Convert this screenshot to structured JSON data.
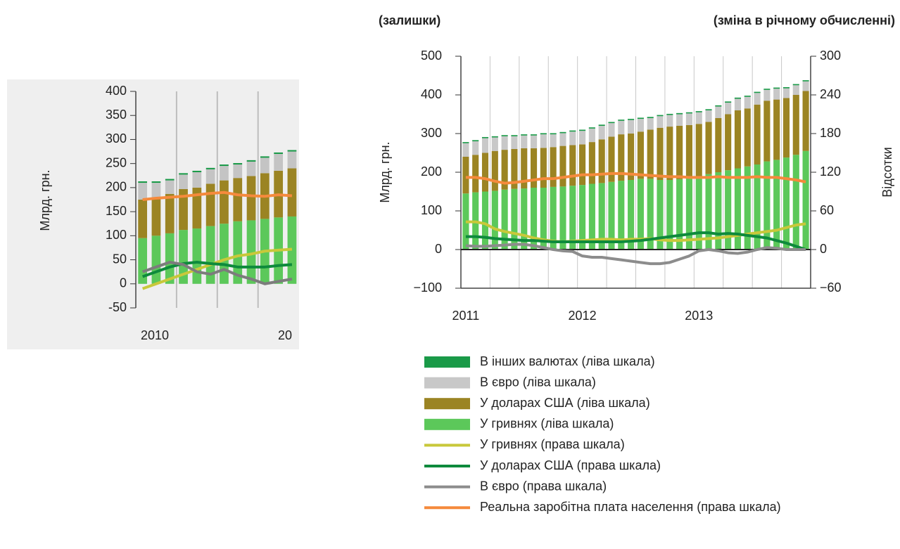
{
  "chart_data": [
    {
      "type": "bar",
      "ylabel": "Млрд. грн.",
      "categories": [
        null,
        null,
        null,
        null,
        null,
        null,
        null,
        null,
        null,
        null,
        null,
        null
      ],
      "x_labels": [
        "2010",
        "20"
      ],
      "ylim": [
        -50,
        400
      ],
      "yticks": [
        400,
        350,
        300,
        250,
        200,
        150,
        100,
        50,
        0,
        -50
      ],
      "series": [
        {
          "type": "bar",
          "color": "#1a9a48",
          "values": [
            3,
            3,
            3,
            3,
            3,
            3,
            3,
            3,
            3,
            3,
            3,
            3
          ]
        },
        {
          "type": "bar",
          "color": "#c4c4c4",
          "values": [
            35,
            30,
            28,
            30,
            32,
            30,
            30,
            28,
            30,
            32,
            35,
            35
          ]
        },
        {
          "type": "bar",
          "color": "#9b8423",
          "values": [
            80,
            80,
            82,
            85,
            85,
            88,
            90,
            90,
            92,
            95,
            97,
            100
          ]
        },
        {
          "type": "bar",
          "color": "#5cc85a",
          "values": [
            95,
            100,
            105,
            112,
            115,
            120,
            125,
            130,
            132,
            135,
            138,
            140
          ]
        },
        {
          "type": "line",
          "color": "#c8c83a",
          "values": [
            -10,
            0,
            10,
            20,
            30,
            40,
            50,
            58,
            62,
            68,
            70,
            72
          ]
        },
        {
          "type": "line",
          "color": "#0e8a3c",
          "values": [
            15,
            25,
            35,
            42,
            45,
            42,
            40,
            35,
            35,
            35,
            38,
            40
          ]
        },
        {
          "type": "line",
          "color": "#7c7c7c",
          "values": [
            25,
            35,
            45,
            40,
            25,
            20,
            30,
            18,
            10,
            0,
            5,
            10
          ]
        },
        {
          "type": "line",
          "color": "#f58a3c",
          "values": [
            175,
            178,
            180,
            182,
            185,
            188,
            190,
            185,
            183,
            182,
            185,
            183
          ]
        }
      ]
    },
    {
      "type": "bar",
      "title_left": "(залишки)",
      "title_right": "(зміна в річному обчисленні)",
      "ylabel": "Млрд. грн.",
      "y2label": "Відсотки",
      "categories": [
        null,
        null,
        null,
        null,
        null,
        null,
        null,
        null,
        null,
        null,
        null,
        null,
        null,
        null,
        null,
        null,
        null,
        null,
        null,
        null,
        null,
        null,
        null,
        null,
        null,
        null,
        null,
        null,
        null,
        null,
        null,
        null,
        null,
        null,
        null,
        null
      ],
      "x_labels": [
        "2011",
        "2012",
        "2013"
      ],
      "ylim": [
        -100,
        500
      ],
      "yticks": [
        500,
        400,
        300,
        200,
        100,
        0,
        {
          "value": -100,
          "label": "−100"
        }
      ],
      "y2lim": [
        -60,
        300
      ],
      "y2ticks": [
        300,
        240,
        180,
        120,
        60,
        0,
        {
          "value": -60,
          "label": "−60"
        }
      ],
      "series": [
        {
          "name": "В інших валютах (ліва шкала)",
          "type": "bar",
          "color": "#1a9a48",
          "values": [
            3,
            3,
            3,
            3,
            3,
            3,
            3,
            3,
            3,
            3,
            3,
            3,
            3,
            3,
            3,
            3,
            3,
            3,
            3,
            3,
            3,
            3,
            3,
            3,
            3,
            3,
            3,
            3,
            3,
            3,
            3,
            3,
            3,
            3,
            3,
            3
          ]
        },
        {
          "name": "В євро (ліва шкала)",
          "type": "bar",
          "color": "#c8c8c8",
          "values": [
            35,
            35,
            38,
            35,
            35,
            33,
            33,
            33,
            35,
            33,
            33,
            35,
            35,
            35,
            35,
            35,
            35,
            35,
            33,
            30,
            30,
            30,
            30,
            30,
            30,
            30,
            30,
            30,
            30,
            30,
            30,
            28,
            28,
            25,
            25,
            25
          ]
        },
        {
          "name": "У доларах США (ліва шкала)",
          "type": "bar",
          "color": "#9b8423",
          "values": [
            95,
            97,
            100,
            103,
            103,
            103,
            104,
            102,
            103,
            103,
            105,
            105,
            105,
            108,
            113,
            117,
            120,
            120,
            122,
            127,
            135,
            138,
            138,
            137,
            135,
            135,
            140,
            145,
            150,
            150,
            155,
            157,
            156,
            154,
            155,
            155
          ]
        },
        {
          "name": "У гривнях (ліва шкала)",
          "type": "bar",
          "color": "#5cc85a",
          "values": [
            145,
            148,
            150,
            152,
            155,
            157,
            158,
            160,
            160,
            162,
            163,
            165,
            167,
            170,
            172,
            175,
            178,
            180,
            183,
            183,
            180,
            180,
            182,
            185,
            190,
            195,
            200,
            205,
            210,
            215,
            220,
            228,
            232,
            238,
            245,
            255
          ]
        },
        {
          "name": "У гривнях (права шкала)",
          "type": "line",
          "axis": "y2",
          "color": "#c8c83a",
          "values": [
            43,
            43,
            40,
            32,
            28,
            25,
            22,
            18,
            15,
            13,
            12,
            13,
            14,
            15,
            16,
            16,
            15,
            16,
            16,
            17,
            15,
            14,
            14,
            15,
            16,
            17,
            18,
            20,
            22,
            24,
            26,
            28,
            30,
            34,
            38,
            40
          ]
        },
        {
          "name": "У доларах США (права шкала)",
          "type": "line",
          "axis": "y2",
          "color": "#0e8a3c",
          "values": [
            20,
            20,
            19,
            17,
            16,
            15,
            14,
            14,
            13,
            12,
            12,
            12,
            12,
            12,
            12,
            12,
            12,
            13,
            14,
            16,
            18,
            20,
            22,
            24,
            26,
            26,
            24,
            25,
            24,
            22,
            20,
            18,
            14,
            10,
            5,
            0
          ]
        },
        {
          "name": "В євро (права шкала)",
          "type": "line",
          "axis": "y2",
          "color": "#8c8c8c",
          "values": [
            6,
            5,
            5,
            6,
            7,
            8,
            8,
            6,
            3,
            0,
            -2,
            -3,
            -10,
            -12,
            -12,
            -14,
            -16,
            -18,
            -20,
            -22,
            -22,
            -20,
            -15,
            -10,
            -2,
            0,
            -2,
            -5,
            -6,
            -4,
            0,
            3,
            2,
            0,
            0,
            0
          ]
        },
        {
          "name": "Реальна заробітна плата населення (права шкала)",
          "type": "line",
          "axis": "y2",
          "color": "#f58a3c",
          "values": [
            112,
            112,
            110,
            106,
            103,
            104,
            106,
            108,
            110,
            110,
            112,
            114,
            116,
            116,
            117,
            118,
            118,
            117,
            116,
            115,
            114,
            113,
            113,
            112,
            112,
            112,
            113,
            112,
            112,
            112,
            113,
            112,
            112,
            110,
            108,
            105
          ]
        }
      ]
    }
  ]
}
